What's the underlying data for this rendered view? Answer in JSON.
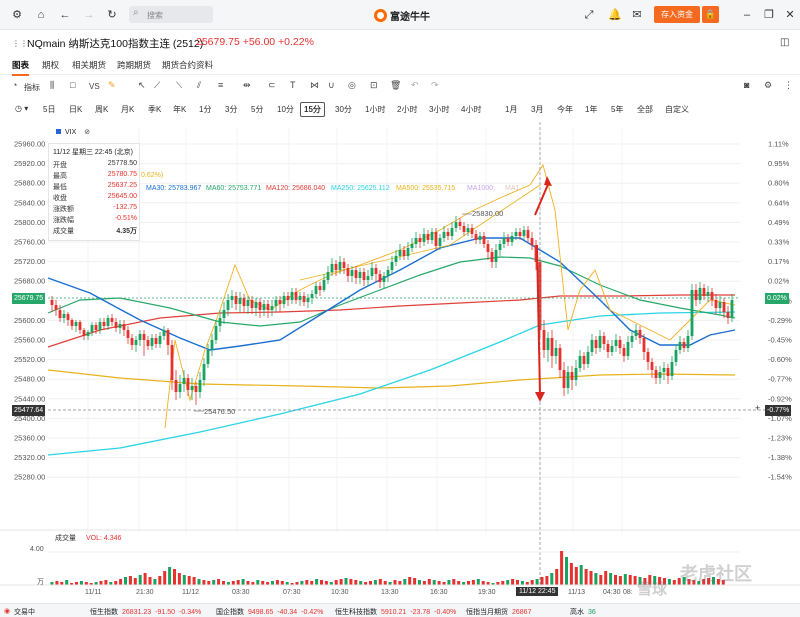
{
  "topbar": {
    "search_placeholder": "搜索",
    "brand": "富途牛牛",
    "deposit_label": "存入资金"
  },
  "instrument": {
    "title": "NQmain 纳斯达克100指数主连 (2512)",
    "price_change": "25679.75 +56.00 +0.22%"
  },
  "tabs": [
    "图表",
    "期权",
    "相关期货",
    "跨期期货",
    "期货合约资料"
  ],
  "toolbar": {
    "indicator_label": "指标",
    "vs_label": "VS"
  },
  "periods": [
    "5日",
    "日K",
    "周K",
    "月K",
    "季K",
    "年K",
    "1分",
    "3分",
    "5分",
    "10分",
    "15分",
    "30分",
    "1小时",
    "2小时",
    "3小时",
    "4小时",
    "1月",
    "3月",
    "今年",
    "1年",
    "5年",
    "全部",
    "自定义"
  ],
  "active_period": "15分",
  "legend": {
    "vix_label": "VIX"
  },
  "infobox": {
    "datetime": "11/12 星期三 22:45 (北京)",
    "rows": [
      {
        "label": "开盘",
        "value": "25778.50"
      },
      {
        "label": "最高",
        "value": "25780.75"
      },
      {
        "label": "最低",
        "value": "25637.25"
      },
      {
        "label": "收盘",
        "value": "25645.00"
      },
      {
        "label": "涨跌额",
        "value": "-132.75"
      },
      {
        "label": "涨跌幅",
        "value": "-0.51%"
      },
      {
        "label": "成交量",
        "value": "4.35万"
      }
    ],
    "partial_pct": "0.62%)"
  },
  "ma_legend": [
    {
      "text": "MA30: 25783.967",
      "color": "#1a6fd1"
    },
    {
      "text": "MA60: 25753.771",
      "color": "#27a86a"
    },
    {
      "text": "MA120: 25686.040",
      "color": "#e0403a"
    },
    {
      "text": "MA250: 25625.112",
      "color": "#2ad4e6"
    },
    {
      "text": "MA500: 25535.715",
      "color": "#e8b21a"
    },
    {
      "text": "MA1000:",
      "color": "#c7a6f0"
    },
    {
      "text": "MA1",
      "color": "#e3c7b8"
    }
  ],
  "price_axis": [
    "25960.00",
    "25920.00",
    "25880.00",
    "25840.00",
    "25800.00",
    "25760.00",
    "25720.00",
    "25680.00",
    "25640.00",
    "25600.00",
    "25560.00",
    "25520.00",
    "25480.00",
    "25440.00",
    "25400.00",
    "25360.00",
    "25320.00",
    "25280.00"
  ],
  "pct_axis": [
    "1.11%",
    "0.95%",
    "0.80%",
    "0.64%",
    "0.49%",
    "0.33%",
    "0.17%",
    "0.02%",
    "-0.14%",
    "-0.29%",
    "-0.45%",
    "-0.60%",
    "-0.77%",
    "-0.92%",
    "-1.07%",
    "-1.23%",
    "-1.38%",
    "-1.54%"
  ],
  "current_price_tag": "25679.75",
  "current_pct_tag": "0.02%",
  "crosshair_price_tag": "25477.64",
  "crosshair_pct_tag": "-0.77%",
  "annotations": {
    "high_label": "25830.00",
    "low_label": "25476.50"
  },
  "volume": {
    "title": "成交量",
    "vol_label": "VOL: 4.346",
    "axis_top": "4.00",
    "axis_unit": "万"
  },
  "time_axis": [
    "11/11",
    "21:30",
    "11/12",
    "03:30",
    "07:30",
    "10:30",
    "13:30",
    "16:30",
    "19:30",
    "11/12 22:45",
    "11/13",
    "04:30",
    "08:"
  ],
  "bottombar": [
    {
      "name": "交易中",
      "price": "",
      "chg": "",
      "pct": ""
    },
    {
      "name": "恒生指数",
      "price": "26831.23",
      "chg": "-91.50",
      "pct": "-0.34%"
    },
    {
      "name": "国企指数",
      "price": "9498.65",
      "chg": "-40.34",
      "pct": "-0.42%"
    },
    {
      "name": "恒生科技指数",
      "price": "5910.21",
      "chg": "-23.78",
      "pct": "-0.40%"
    },
    {
      "name": "恒指当月期货",
      "price": "26867",
      "chg": "",
      "pct": ""
    },
    {
      "name": "高水",
      "price": "36",
      "chg": "",
      "pct": ""
    }
  ],
  "watermark": {
    "text1": "老虎社区",
    "text2": "雪球",
    "text3": "中"
  },
  "colors": {
    "up": "#1aa260",
    "down": "#e6322e",
    "accent": "#f56a1f"
  }
}
